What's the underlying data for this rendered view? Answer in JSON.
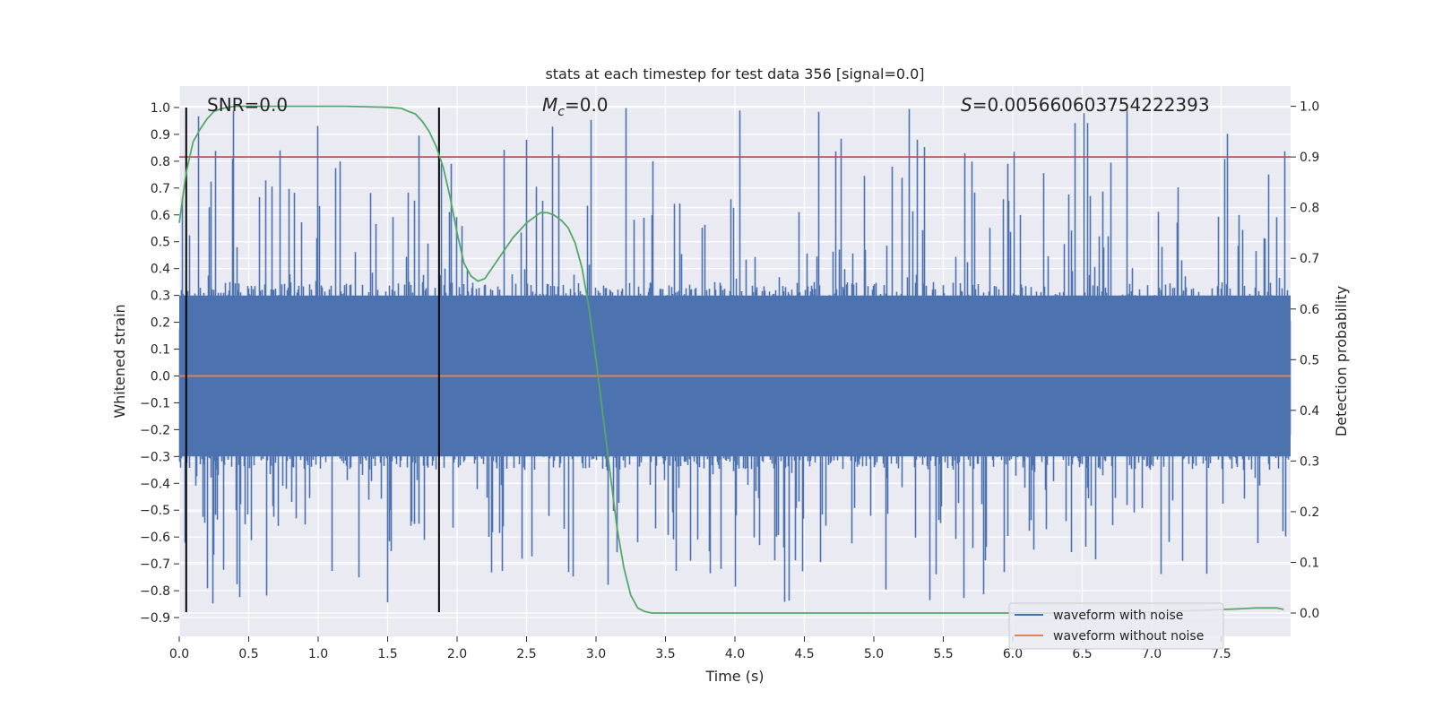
{
  "chart_data": {
    "type": "line",
    "title": "stats at each timestep for test data 356 [signal=0.0]",
    "xlabel": "Time (s)",
    "ylabel": "Whitened strain",
    "y2label": "Detection probability",
    "xlim": [
      0.0,
      8.0
    ],
    "ylim": [
      -0.97,
      1.08
    ],
    "y2lim": [
      -0.046,
      1.04
    ],
    "x_ticks": [
      0.0,
      0.5,
      1.0,
      1.5,
      2.0,
      2.5,
      3.0,
      3.5,
      4.0,
      4.5,
      5.0,
      5.5,
      6.0,
      6.5,
      7.0,
      7.5
    ],
    "x_tick_labels": [
      "0.0",
      "0.5",
      "1.0",
      "1.5",
      "2.0",
      "2.5",
      "3.0",
      "3.5",
      "4.0",
      "4.5",
      "5.0",
      "5.5",
      "6.0",
      "6.5",
      "7.0",
      "7.5"
    ],
    "y_ticks": [
      1.0,
      0.9,
      0.8,
      0.7,
      0.6,
      0.5,
      0.4,
      0.3,
      0.2,
      0.1,
      0.0,
      -0.1,
      -0.2,
      -0.3,
      -0.4,
      -0.5,
      -0.6,
      -0.7,
      -0.8,
      -0.9
    ],
    "y_tick_labels": [
      "1.0",
      "0.9",
      "0.8",
      "0.7",
      "0.6",
      "0.5",
      "0.4",
      "0.3",
      "0.2",
      "0.1",
      "0.0",
      "−0.1",
      "−0.2",
      "−0.3",
      "−0.4",
      "−0.5",
      "−0.6",
      "−0.7",
      "−0.8",
      "−0.9"
    ],
    "y2_ticks": [
      1.0,
      0.9,
      0.8,
      0.7,
      0.6,
      0.5,
      0.4,
      0.3,
      0.2,
      0.1,
      0.0
    ],
    "y2_tick_labels": [
      "1.0",
      "0.9",
      "0.8",
      "0.7",
      "0.6",
      "0.5",
      "0.4",
      "0.3",
      "0.2",
      "0.1",
      "0.0"
    ],
    "grid": true,
    "annotations": {
      "snr": "SNR=0.0",
      "mc_symbol": "M",
      "mc_sub": "c",
      "mc_value": "=0.0",
      "s_symbol": "S",
      "s_value": "=0.005660603754222393"
    },
    "series": [
      {
        "name": "waveform with noise",
        "color": "#4c72b0",
        "noise_envelope": {
          "typical_abs": 0.35,
          "max": 1.0,
          "min": -0.85
        },
        "x_range": [
          0.0,
          8.0
        ]
      },
      {
        "name": "waveform without noise",
        "color": "#dd8452",
        "x": [
          0.0,
          8.0
        ],
        "y": [
          0.0,
          0.0
        ]
      },
      {
        "name": "detection probability",
        "color": "#55a868",
        "axis": "right",
        "x": [
          0.0,
          0.05,
          0.1,
          0.15,
          0.2,
          0.25,
          0.3,
          0.35,
          0.4,
          0.5,
          0.8,
          1.2,
          1.5,
          1.6,
          1.65,
          1.7,
          1.75,
          1.8,
          1.85,
          1.9,
          1.95,
          2.0,
          2.05,
          2.1,
          2.15,
          2.2,
          2.3,
          2.4,
          2.5,
          2.6,
          2.65,
          2.7,
          2.75,
          2.8,
          2.85,
          2.9,
          2.95,
          3.0,
          3.05,
          3.1,
          3.15,
          3.2,
          3.25,
          3.3,
          3.35,
          3.4,
          3.5,
          4.0,
          5.0,
          6.0,
          6.5,
          7.0,
          7.3,
          7.6,
          7.75,
          7.9,
          7.95
        ],
        "y": [
          0.77,
          0.87,
          0.93,
          0.955,
          0.975,
          0.99,
          0.995,
          0.998,
          1.0,
          1.0,
          1.0,
          1.0,
          0.998,
          0.996,
          0.99,
          0.985,
          0.97,
          0.95,
          0.92,
          0.88,
          0.82,
          0.75,
          0.69,
          0.665,
          0.655,
          0.66,
          0.7,
          0.74,
          0.77,
          0.79,
          0.79,
          0.785,
          0.775,
          0.76,
          0.73,
          0.68,
          0.6,
          0.5,
          0.39,
          0.28,
          0.17,
          0.09,
          0.035,
          0.01,
          0.003,
          0.0,
          0.0,
          0.0,
          0.0,
          0.0,
          0.0,
          0.002,
          0.005,
          0.008,
          0.01,
          0.01,
          0.007
        ]
      },
      {
        "name": "threshold",
        "color": "#c44e52",
        "axis": "right",
        "y": 0.9
      },
      {
        "name": "markers",
        "color": "#000000",
        "x": [
          0.05,
          1.87
        ],
        "ylim": [
          -0.88,
          1.0
        ]
      }
    ],
    "legend": {
      "placement": "lower-right",
      "entries": [
        {
          "label": "waveform with noise",
          "color": "#4c72b0"
        },
        {
          "label": "waveform without noise",
          "color": "#dd8452"
        }
      ]
    },
    "colors": {
      "plot_bg": "#eaeaf2",
      "grid": "#ffffff",
      "text": "#262626"
    }
  }
}
